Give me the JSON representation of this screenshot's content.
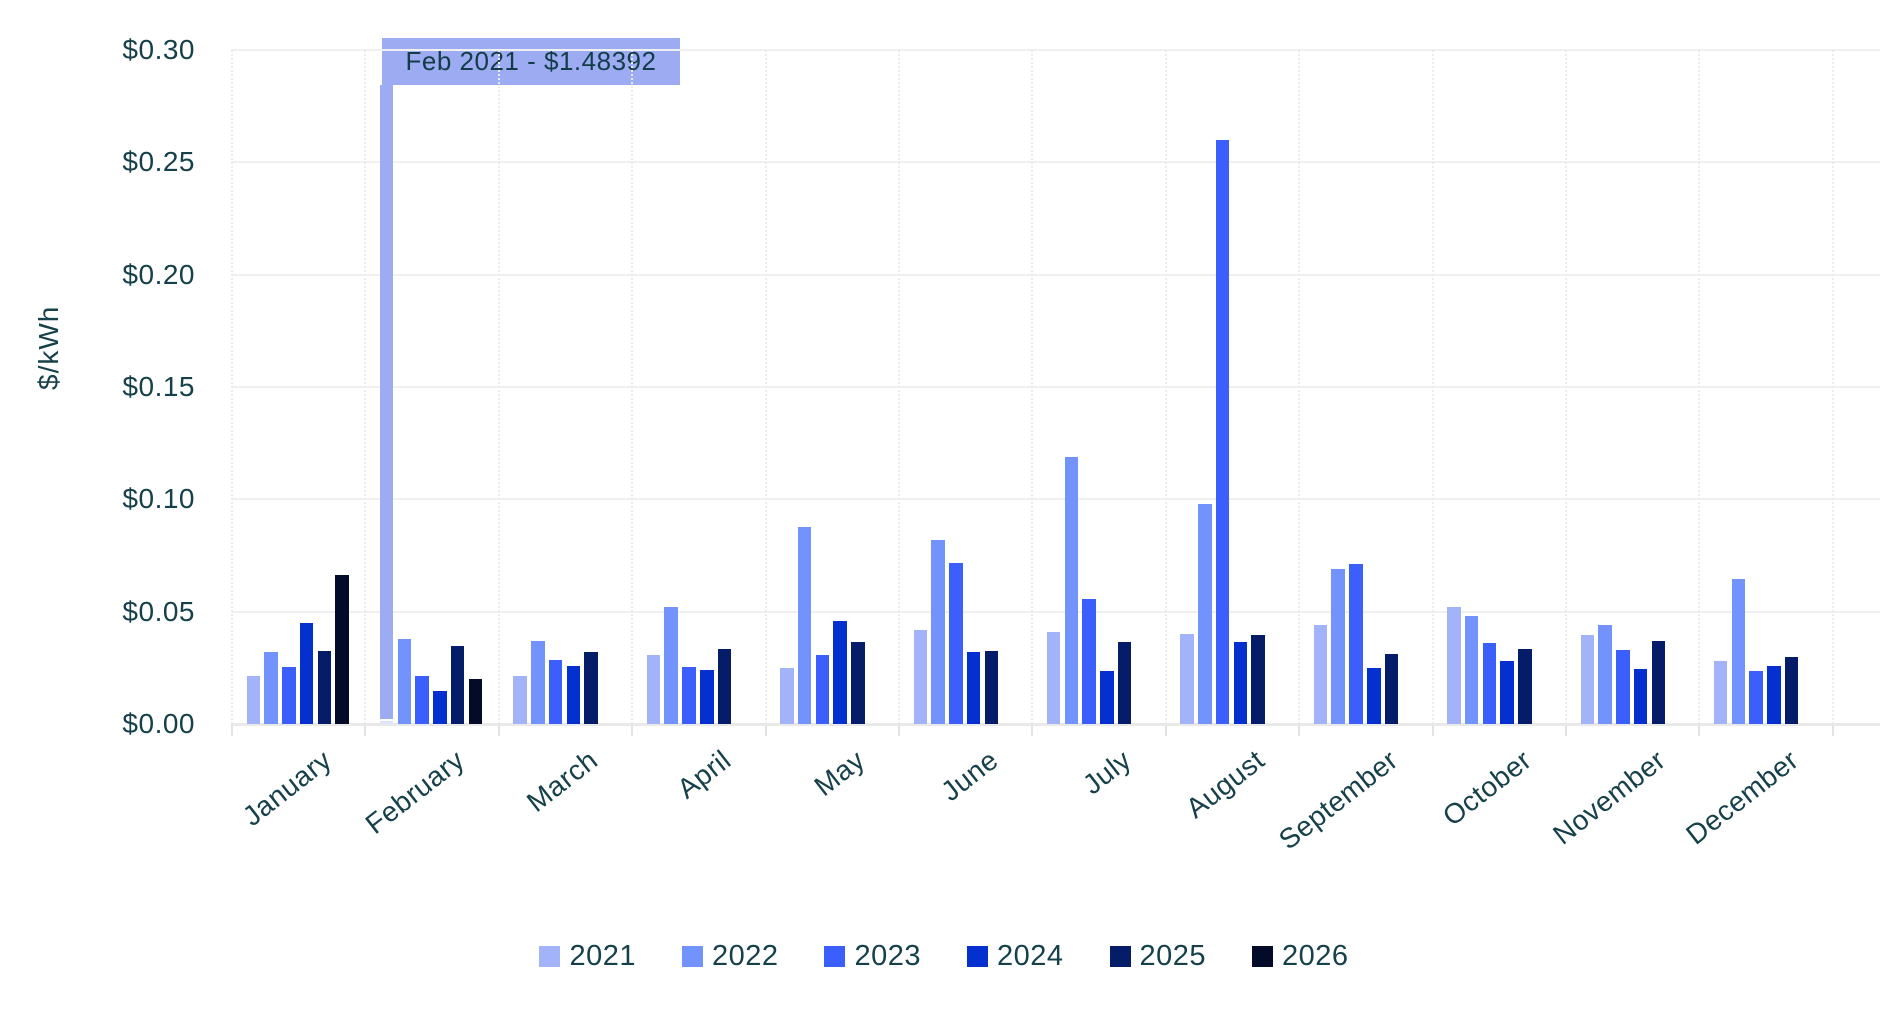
{
  "chart_data": {
    "type": "bar",
    "title": "",
    "xlabel": "",
    "ylabel": "$/kWh",
    "ylim": [
      0,
      0.3
    ],
    "y_ticks": [
      "$0.00",
      "$0.05",
      "$0.10",
      "$0.15",
      "$0.20",
      "$0.25",
      "$0.30"
    ],
    "grid": true,
    "legend_position": "bottom",
    "categories": [
      "January",
      "February",
      "March",
      "April",
      "May",
      "June",
      "July",
      "August",
      "September",
      "October",
      "November",
      "December"
    ],
    "series": [
      {
        "name": "2021",
        "color": "#a2b3fa",
        "values": [
          0.0215,
          1.48392,
          0.0215,
          0.0305,
          0.025,
          0.042,
          0.041,
          0.04,
          0.044,
          0.052,
          0.0395,
          0.028
        ]
      },
      {
        "name": "2022",
        "color": "#7393fc",
        "values": [
          0.032,
          0.038,
          0.037,
          0.052,
          0.0875,
          0.082,
          0.119,
          0.098,
          0.069,
          0.048,
          0.044,
          0.0645
        ]
      },
      {
        "name": "2023",
        "color": "#3a5ffc",
        "values": [
          0.0255,
          0.0215,
          0.0285,
          0.0255,
          0.0305,
          0.0715,
          0.0555,
          0.26,
          0.071,
          0.036,
          0.033,
          0.0235
        ]
      },
      {
        "name": "2024",
        "color": "#0430cf",
        "values": [
          0.045,
          0.0145,
          0.026,
          0.024,
          0.046,
          0.032,
          0.0235,
          0.0365,
          0.025,
          0.028,
          0.0245,
          0.026
        ]
      },
      {
        "name": "2025",
        "color": "#051c69",
        "values": [
          0.0325,
          0.0345,
          0.032,
          0.0335,
          0.0365,
          0.0325,
          0.0365,
          0.0395,
          0.031,
          0.0335,
          0.037,
          0.03
        ]
      },
      {
        "name": "2026",
        "color": "#030b28",
        "values": [
          0.0665,
          0.02,
          null,
          null,
          null,
          null,
          null,
          null,
          null,
          null,
          null,
          null
        ]
      }
    ],
    "annotation": {
      "text": "Feb 2021 - $1.48392",
      "value": 1.48392,
      "series": "2021",
      "category": "February",
      "bg_color": "#9dacf2"
    }
  }
}
